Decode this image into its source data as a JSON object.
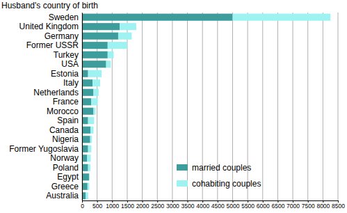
{
  "chart_data": {
    "type": "bar",
    "orientation": "horizontal",
    "stacked": true,
    "title": "Husband's country of birth",
    "categories": [
      "Sweden",
      "United Kingdom",
      "Germany",
      "Former USSR",
      "Turkey",
      "USA",
      "Estonia",
      "Italy",
      "Netherlands",
      "France",
      "Morocco",
      "Spain",
      "Canada",
      "Nigeria",
      "Former Yugoslavia",
      "Norway",
      "Poland",
      "Egypt",
      "Greece",
      "Australia"
    ],
    "series": [
      {
        "name": "married couples",
        "color": "#3d9c9c",
        "values": [
          5000,
          1250,
          1200,
          850,
          850,
          800,
          200,
          350,
          380,
          300,
          380,
          200,
          280,
          270,
          200,
          170,
          200,
          230,
          180,
          120
        ]
      },
      {
        "name": "cohabiting couples",
        "color": "#9ef2f2",
        "values": [
          3250,
          550,
          450,
          650,
          200,
          150,
          450,
          250,
          170,
          220,
          70,
          200,
          100,
          60,
          110,
          120,
          80,
          20,
          60,
          80
        ]
      }
    ],
    "xlim": [
      0,
      8500
    ],
    "xticks": [
      0,
      500,
      1000,
      1500,
      2000,
      2500,
      3000,
      3500,
      4000,
      4500,
      5000,
      5500,
      6000,
      6500,
      7000,
      7500,
      8000,
      8500
    ],
    "grid": true,
    "legend": "lower right"
  }
}
